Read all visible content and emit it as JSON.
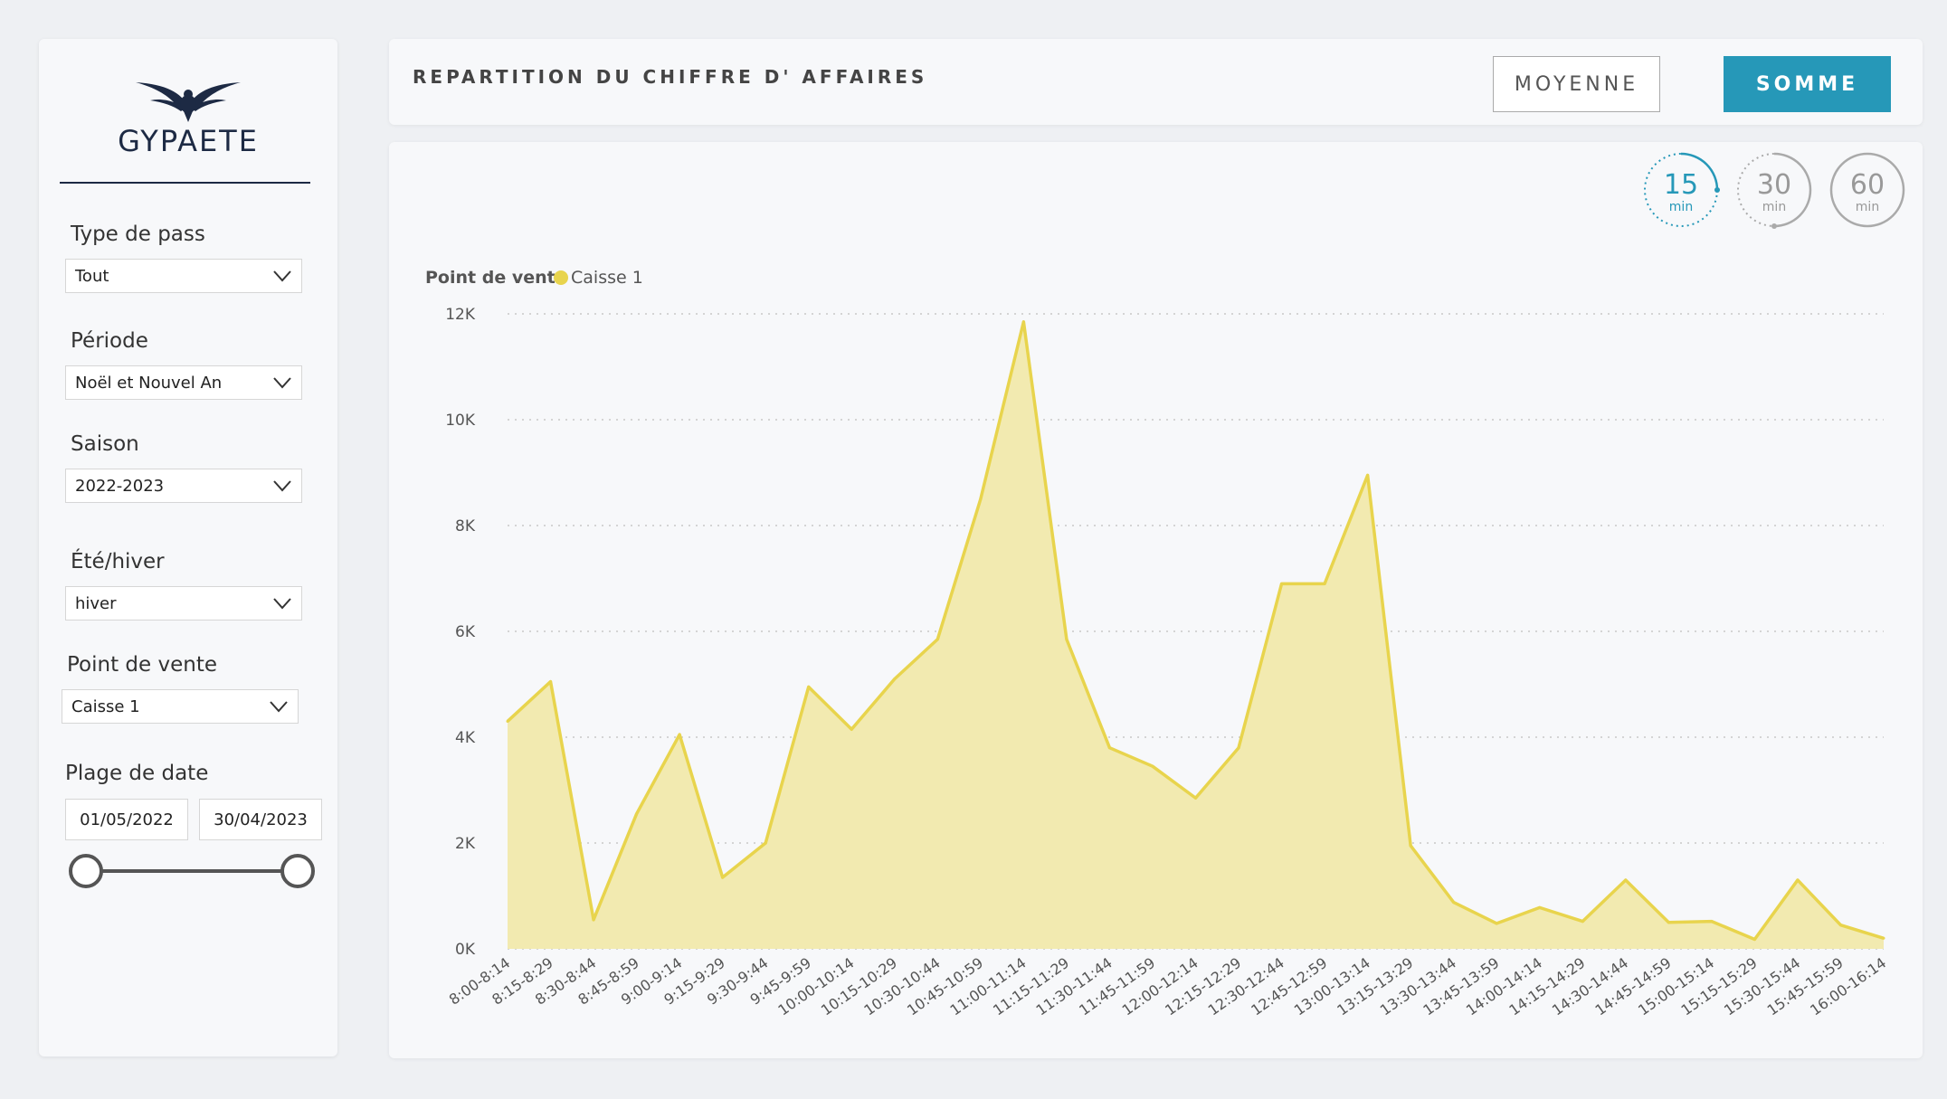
{
  "brand": {
    "name": "GYPAETE"
  },
  "filters": {
    "type_pass": {
      "label": "Type de pass",
      "value": "Tout"
    },
    "periode": {
      "label": "Période",
      "value": "Noël et Nouvel An"
    },
    "saison": {
      "label": "Saison",
      "value": "2022-2023"
    },
    "ete_hiver": {
      "label": "Été/hiver",
      "value": "hiver"
    },
    "point_vente": {
      "label": "Point de vente",
      "value": "Caisse 1"
    },
    "plage_date": {
      "label": "Plage de date",
      "start": "01/05/2022",
      "end": "30/04/2023"
    }
  },
  "header": {
    "title": "REPARTITION DU CHIFFRE D' AFFAIRES",
    "btn_moyenne": "MOYENNE",
    "btn_somme": "SOMME"
  },
  "timers": [
    {
      "num": "15",
      "unit": "min",
      "active": true
    },
    {
      "num": "30",
      "unit": "min",
      "active": false
    },
    {
      "num": "60",
      "unit": "min",
      "active": false
    }
  ],
  "colors": {
    "accent": "#2698b8",
    "series": "#e8d44d",
    "series_fill": "#f2eab0",
    "navy": "#1d2a44"
  },
  "chart_data": {
    "type": "area",
    "legend_title": "Point de vente",
    "categories": [
      "8:00-8:14",
      "8:15-8:29",
      "8:30-8:44",
      "8:45-8:59",
      "9:00-9:14",
      "9:15-9:29",
      "9:30-9:44",
      "9:45-9:59",
      "10:00-10:14",
      "10:15-10:29",
      "10:30-10:44",
      "10:45-10:59",
      "11:00-11:14",
      "11:15-11:29",
      "11:30-11:44",
      "11:45-11:59",
      "12:00-12:14",
      "12:15-12:29",
      "12:30-12:44",
      "12:45-12:59",
      "13:00-13:14",
      "13:15-13:29",
      "13:30-13:44",
      "13:45-13:59",
      "14:00-14:14",
      "14:15-14:29",
      "14:30-14:44",
      "14:45-14:59",
      "15:00-15:14",
      "15:15-15:29",
      "15:30-15:44",
      "15:45-15:59",
      "16:00-16:14"
    ],
    "series": [
      {
        "name": "Caisse 1",
        "values": [
          4300,
          5050,
          550,
          2550,
          4050,
          1350,
          2000,
          4950,
          4150,
          5100,
          5850,
          8500,
          11850,
          5850,
          3800,
          3450,
          2850,
          3800,
          6900,
          6900,
          8950,
          1950,
          880,
          480,
          780,
          520,
          1300,
          500,
          520,
          180,
          1300,
          450,
          200
        ]
      }
    ],
    "ylim": [
      0,
      12000
    ],
    "yticks": [
      "0K",
      "2K",
      "4K",
      "6K",
      "8K",
      "10K",
      "12K"
    ],
    "grid": true,
    "legend_position": "top-left"
  }
}
